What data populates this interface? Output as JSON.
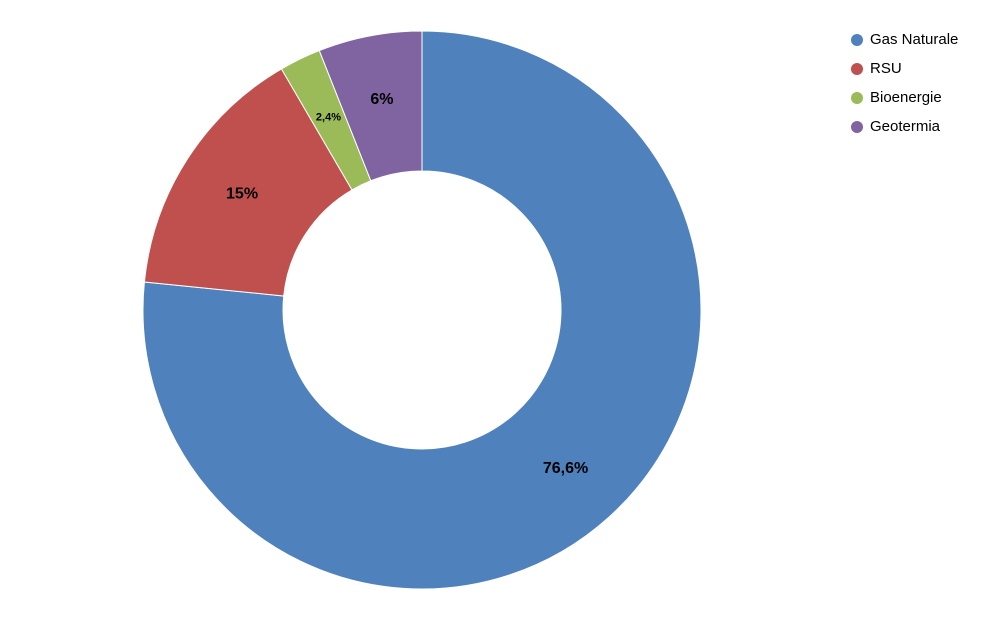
{
  "chart_data": {
    "type": "donut",
    "categories": [
      "Gas Naturale",
      "RSU",
      "Bioenergie",
      "Geotermia"
    ],
    "values": [
      76.6,
      15,
      2.4,
      6
    ],
    "value_labels": [
      "76,6%",
      "15%",
      "2,4%",
      "6%"
    ],
    "colors": [
      "#4f81bd",
      "#c0504d",
      "#9bbb59",
      "#8064a2"
    ],
    "legend": "top-right"
  }
}
